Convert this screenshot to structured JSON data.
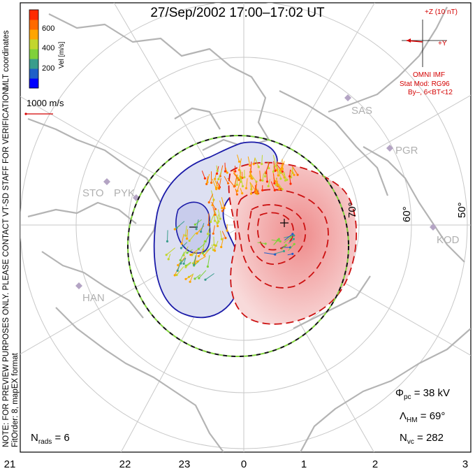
{
  "title": "27/Sep/2002 17:00–17:02 UT",
  "side_notes": {
    "coords": "MLT coordinates",
    "preview": "NOTE: FOR PREVIEW PURPOSES ONLY. PLEASE CONTACT VT-SD STAFF FOR VERIFICATION.",
    "fit": "FitOrder: 8, mapEX format"
  },
  "color_bar": {
    "label": "Vel [m/s]",
    "ticks": [
      "600",
      "400",
      "200"
    ],
    "colors": [
      "#0000ff",
      "#1f5fc8",
      "#3a9d8c",
      "#7fd13b",
      "#c2d62e",
      "#ffa500",
      "#ff6a00",
      "#ff2a00"
    ]
  },
  "scale_vector": {
    "label": "1000 m/s",
    "color": "#d40000"
  },
  "imf": {
    "z_label": "+Z (10 nT)",
    "y_label": "+Y",
    "source": "OMNI IMF",
    "model": "Stat Mod: RG96",
    "condition": "By–, 6<BT<12",
    "color": "#d40000"
  },
  "latitude_labels": [
    "70°",
    "60°",
    "50°"
  ],
  "radar_sites": [
    "SAS",
    "PGR",
    "STO",
    "PYK",
    "KOD",
    "HAN"
  ],
  "mlt_labels": [
    "21",
    "22",
    "23",
    "0",
    "1",
    "2",
    "3"
  ],
  "stats": {
    "n_rads_label": "N",
    "n_rads_sub": "rads",
    "n_rads_value": " = 6",
    "phi_label": "Φ",
    "phi_sub": "pc",
    "phi_value": " = 38 kV",
    "lambda_label": "Λ",
    "lambda_sub": "HM",
    "lambda_value": " = 69°",
    "nvc_label": "N",
    "nvc_sub": "vc",
    "nvc_value": " = 282"
  },
  "convection": {
    "dusk_cell_color": "#1a1aa8",
    "dawn_cell_color": "#cc1111",
    "boundary_color": "#111111",
    "boundary_dash_color": "#7fd13b"
  }
}
